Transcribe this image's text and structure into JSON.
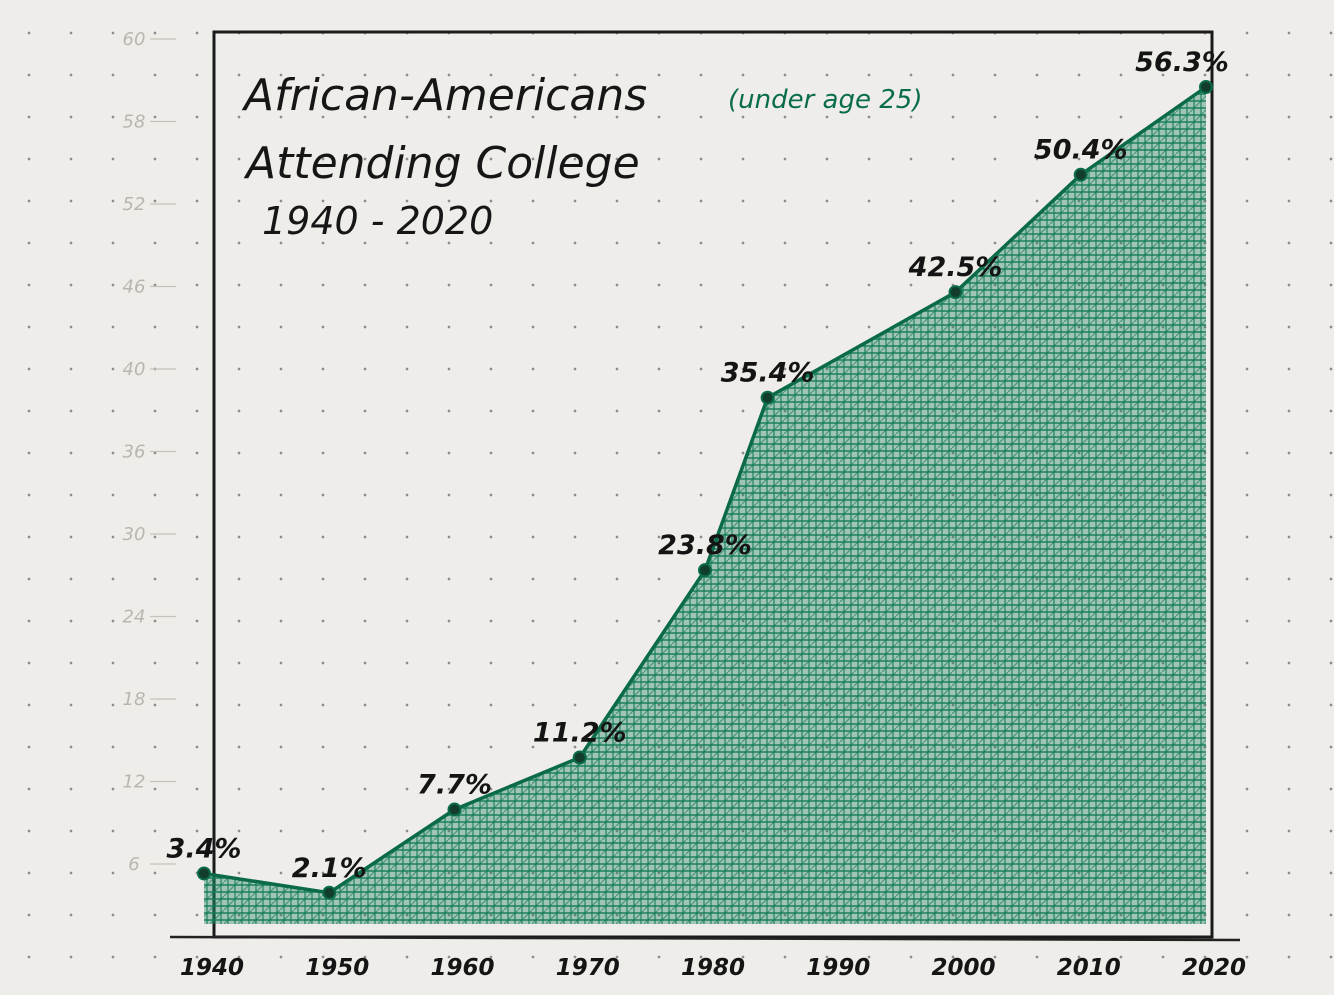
{
  "chart_data": {
    "type": "area",
    "title": "African-Americans",
    "title_note": "(under age 25)",
    "subtitle": "Attending College",
    "period": "1940 - 2020",
    "x": [
      1940,
      1950,
      1960,
      1970,
      1980,
      1985,
      2000,
      2010,
      2020
    ],
    "values": [
      3.4,
      2.1,
      7.7,
      11.2,
      23.8,
      35.4,
      42.5,
      50.4,
      56.3
    ],
    "data_labels": [
      "3.4%",
      "2.1%",
      "7.7%",
      "11.2%",
      "23.8%",
      "35.4%",
      "42.5%",
      "50.4%",
      "56.3%"
    ],
    "x_ticks": [
      "1940",
      "1950",
      "1960",
      "1970",
      "1980",
      "1990",
      "2000",
      "2010",
      "2020"
    ],
    "y_ticks": [
      "60",
      "58",
      "52",
      "46",
      "40",
      "36",
      "30",
      "24",
      "18",
      "12",
      "6"
    ],
    "ylim": [
      0,
      60
    ],
    "xlim": [
      1940,
      2020
    ],
    "grid": false,
    "fill_color": "#0f7a55",
    "line_color": "#0b6b47",
    "frame_color": "#1a1a1a"
  }
}
